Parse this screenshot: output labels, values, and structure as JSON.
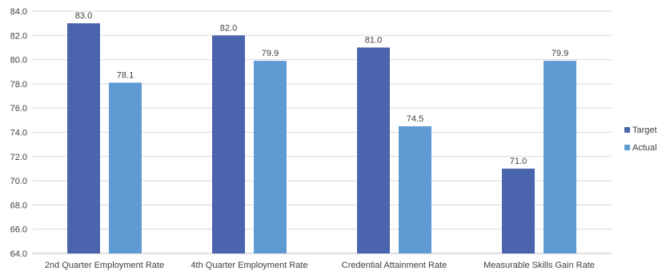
{
  "chart_data": {
    "type": "bar",
    "categories": [
      "2nd Quarter Employment Rate",
      "4th Quarter Employment Rate",
      "Credential Attainment Rate",
      "Measurable Skills Gain Rate"
    ],
    "series": [
      {
        "name": "Target",
        "color": "#4a64ae",
        "values": [
          83.0,
          82.0,
          81.0,
          71.0
        ]
      },
      {
        "name": "Actual",
        "color": "#5f9bd3",
        "values": [
          78.1,
          79.9,
          74.5,
          79.9
        ]
      }
    ],
    "ylim": [
      64.0,
      84.0
    ],
    "y_ticks": [
      "64.0",
      "66.0",
      "68.0",
      "70.0",
      "72.0",
      "74.0",
      "76.0",
      "78.0",
      "80.0",
      "82.0",
      "84.0"
    ],
    "data_labels": [
      [
        "83.0",
        "82.0",
        "81.0",
        "71.0"
      ],
      [
        "78.1",
        "79.9",
        "74.5",
        "79.9"
      ]
    ],
    "grid": true,
    "legend_position": "right",
    "title": "",
    "xlabel": "",
    "ylabel": ""
  }
}
